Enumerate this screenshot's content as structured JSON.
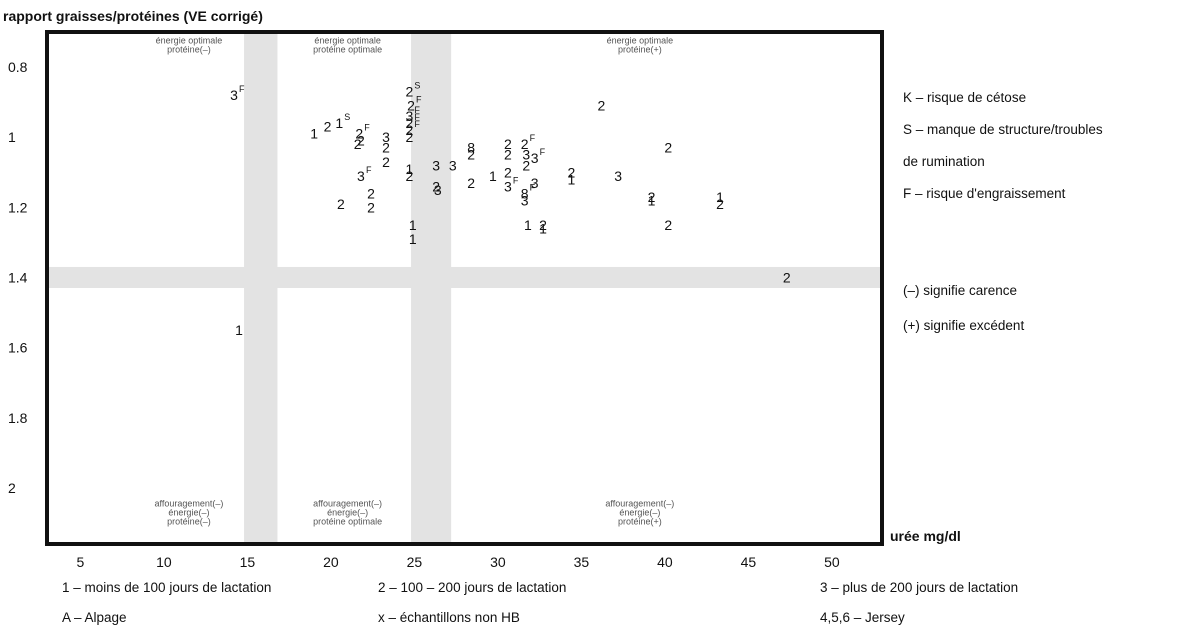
{
  "chart_data": {
    "type": "scatter",
    "ylabel": "rapport graisses/protéines (VE corrigé)",
    "xlabel": "urée mg/dl",
    "xlim": [
      3,
      53
    ],
    "ylim": [
      0.7,
      2.16
    ],
    "y_inverted": true,
    "x_ticks": [
      "5",
      "10",
      "15",
      "20",
      "25",
      "30",
      "35",
      "40",
      "45",
      "50"
    ],
    "y_ticks": [
      "0.8",
      "1",
      "1.2",
      "1.4",
      "1.6",
      "1.8",
      "2"
    ],
    "y_tick_values": [
      0.8,
      1.0,
      1.2,
      1.4,
      1.6,
      1.8,
      2.0
    ],
    "shaded_bands": {
      "x": [
        [
          14.8,
          16.8
        ],
        [
          24.8,
          27.2
        ]
      ],
      "y": [
        [
          1.37,
          1.43
        ]
      ]
    },
    "regions": [
      {
        "x": 11.5,
        "y": 0.71,
        "lines": [
          "énergie optimale",
          "protéine(–)"
        ]
      },
      {
        "x": 21,
        "y": 0.71,
        "lines": [
          "énergie optimale",
          "protéine optimale"
        ]
      },
      {
        "x": 38.5,
        "y": 0.71,
        "lines": [
          "énergie optimale",
          "protéine(+)"
        ]
      },
      {
        "x": 11.5,
        "y": 2.03,
        "lines": [
          "affouragement(–)",
          "énergie(–)",
          "protéine(–)"
        ]
      },
      {
        "x": 21,
        "y": 2.03,
        "lines": [
          "affouragement(–)",
          "énergie(–)",
          "protéine optimale"
        ]
      },
      {
        "x": 38.5,
        "y": 2.03,
        "lines": [
          "affouragement(–)",
          "énergie(–)",
          "protéine(+)"
        ]
      }
    ],
    "points": [
      {
        "x": 14.2,
        "y": 0.88,
        "label": "3",
        "sup": "F"
      },
      {
        "x": 19.0,
        "y": 0.99,
        "label": "1"
      },
      {
        "x": 19.8,
        "y": 0.97,
        "label": "2"
      },
      {
        "x": 20.5,
        "y": 0.96,
        "label": "1",
        "sup": "S"
      },
      {
        "x": 21.7,
        "y": 0.99,
        "label": "2",
        "sup": "F"
      },
      {
        "x": 21.6,
        "y": 1.02,
        "label": "2"
      },
      {
        "x": 21.8,
        "y": 1.01,
        "label": "2"
      },
      {
        "x": 21.8,
        "y": 1.11,
        "label": "3",
        "sup": "F"
      },
      {
        "x": 20.6,
        "y": 1.19,
        "label": "2"
      },
      {
        "x": 22.4,
        "y": 1.16,
        "label": "2"
      },
      {
        "x": 22.4,
        "y": 1.2,
        "label": "2"
      },
      {
        "x": 23.3,
        "y": 1.0,
        "label": "3"
      },
      {
        "x": 23.3,
        "y": 1.03,
        "label": "2"
      },
      {
        "x": 23.3,
        "y": 1.07,
        "label": "2"
      },
      {
        "x": 24.7,
        "y": 0.87,
        "label": "2",
        "sup": "S"
      },
      {
        "x": 24.8,
        "y": 0.91,
        "label": "2",
        "sup": "F"
      },
      {
        "x": 24.7,
        "y": 0.94,
        "label": "3",
        "sup": "F"
      },
      {
        "x": 24.7,
        "y": 0.96,
        "label": "2",
        "sup": "F"
      },
      {
        "x": 24.7,
        "y": 0.98,
        "label": "2",
        "sup": "F"
      },
      {
        "x": 24.7,
        "y": 1.0,
        "label": "2"
      },
      {
        "x": 24.7,
        "y": 1.09,
        "label": "1"
      },
      {
        "x": 24.7,
        "y": 1.11,
        "label": "2"
      },
      {
        "x": 24.9,
        "y": 1.25,
        "label": "1"
      },
      {
        "x": 24.9,
        "y": 1.29,
        "label": "1"
      },
      {
        "x": 26.3,
        "y": 1.08,
        "label": "3"
      },
      {
        "x": 26.3,
        "y": 1.14,
        "label": "2"
      },
      {
        "x": 26.4,
        "y": 1.15,
        "label": "3"
      },
      {
        "x": 27.3,
        "y": 1.08,
        "label": "3"
      },
      {
        "x": 28.4,
        "y": 1.03,
        "label": "8"
      },
      {
        "x": 28.4,
        "y": 1.05,
        "label": "2"
      },
      {
        "x": 28.4,
        "y": 1.13,
        "label": "2"
      },
      {
        "x": 29.7,
        "y": 1.11,
        "label": "1"
      },
      {
        "x": 30.6,
        "y": 1.02,
        "label": "2"
      },
      {
        "x": 30.6,
        "y": 1.05,
        "label": "2"
      },
      {
        "x": 30.6,
        "y": 1.1,
        "label": "2"
      },
      {
        "x": 30.6,
        "y": 1.14,
        "label": "3",
        "sup": "F"
      },
      {
        "x": 31.6,
        "y": 1.02,
        "label": "2",
        "sup": "F"
      },
      {
        "x": 31.7,
        "y": 1.05,
        "label": "3"
      },
      {
        "x": 31.7,
        "y": 1.08,
        "label": "2"
      },
      {
        "x": 31.6,
        "y": 1.16,
        "label": "8",
        "sup": "F"
      },
      {
        "x": 31.6,
        "y": 1.18,
        "label": "3"
      },
      {
        "x": 32.2,
        "y": 1.06,
        "label": "3",
        "sup": "F"
      },
      {
        "x": 32.2,
        "y": 1.13,
        "label": "3"
      },
      {
        "x": 31.8,
        "y": 1.25,
        "label": "1"
      },
      {
        "x": 32.7,
        "y": 1.25,
        "label": "2"
      },
      {
        "x": 32.7,
        "y": 1.26,
        "label": "1"
      },
      {
        "x": 34.4,
        "y": 1.1,
        "label": "2"
      },
      {
        "x": 34.4,
        "y": 1.12,
        "label": "1"
      },
      {
        "x": 36.2,
        "y": 0.91,
        "label": "2"
      },
      {
        "x": 37.2,
        "y": 1.11,
        "label": "3"
      },
      {
        "x": 39.2,
        "y": 1.17,
        "label": "2"
      },
      {
        "x": 39.2,
        "y": 1.18,
        "label": "1"
      },
      {
        "x": 40.2,
        "y": 1.03,
        "label": "2"
      },
      {
        "x": 40.2,
        "y": 1.25,
        "label": "2"
      },
      {
        "x": 43.3,
        "y": 1.17,
        "label": "1"
      },
      {
        "x": 43.3,
        "y": 1.19,
        "label": "2"
      },
      {
        "x": 47.3,
        "y": 1.4,
        "label": "2"
      },
      {
        "x": 14.5,
        "y": 1.55,
        "label": "1"
      }
    ]
  },
  "legend_right": [
    "K – risque de cétose",
    "S – manque de structure/troubles",
    "de rumination",
    "F – risque d'engraissement",
    "(–) signifie carence",
    "(+) signifie excédent"
  ],
  "legend_bottom": [
    "1 – moins de 100 jours de lactation",
    "2 – 100 – 200 jours de lactation",
    "3 – plus de 200 jours de lactation",
    "A – Alpage",
    "x – échantillons non HB",
    "4,5,6 – Jersey"
  ]
}
